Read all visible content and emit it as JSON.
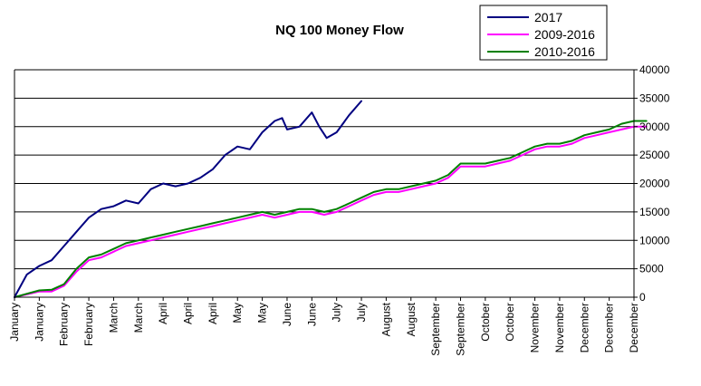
{
  "chart_data": {
    "type": "line",
    "title": "NQ 100 Money Flow",
    "xlabel": "",
    "ylabel": "",
    "ylim": [
      0,
      40000
    ],
    "yticks": [
      "0",
      "5000",
      "10000",
      "15000",
      "20000",
      "25000",
      "30000",
      "35000",
      "40000"
    ],
    "x_labels": [
      "January",
      "January",
      "February",
      "February",
      "March",
      "March",
      "April",
      "April",
      "April",
      "May",
      "May",
      "June",
      "June",
      "July",
      "July",
      "August",
      "August",
      "September",
      "September",
      "October",
      "October",
      "November",
      "November",
      "December",
      "December",
      "December"
    ],
    "grid": "horizontal",
    "legend_position": "top-right",
    "series": [
      {
        "name": "2017",
        "color": "#000080",
        "points": [
          [
            0,
            0
          ],
          [
            0.5,
            4000
          ],
          [
            1,
            5500
          ],
          [
            1.5,
            6500
          ],
          [
            2,
            9000
          ],
          [
            2.5,
            11500
          ],
          [
            3,
            14000
          ],
          [
            3.5,
            15500
          ],
          [
            4,
            16000
          ],
          [
            4.5,
            17000
          ],
          [
            5,
            16500
          ],
          [
            5.5,
            19000
          ],
          [
            6,
            20000
          ],
          [
            6.5,
            19500
          ],
          [
            7,
            20000
          ],
          [
            7.5,
            21000
          ],
          [
            8,
            22500
          ],
          [
            8.5,
            25000
          ],
          [
            9,
            26500
          ],
          [
            9.5,
            26000
          ],
          [
            10,
            29000
          ],
          [
            10.5,
            31000
          ],
          [
            10.8,
            31500
          ],
          [
            11,
            29500
          ],
          [
            11.5,
            30000
          ],
          [
            12,
            32500
          ],
          [
            12.3,
            30000
          ],
          [
            12.6,
            28000
          ],
          [
            13,
            29000
          ],
          [
            13.5,
            32000
          ],
          [
            14,
            34500
          ]
        ]
      },
      {
        "name": "2009-2016",
        "color": "#ff00ff",
        "points": [
          [
            0,
            0
          ],
          [
            0.5,
            500
          ],
          [
            1,
            1000
          ],
          [
            1.5,
            1000
          ],
          [
            2,
            2000
          ],
          [
            2.5,
            4500
          ],
          [
            3,
            6500
          ],
          [
            3.5,
            7000
          ],
          [
            4,
            8000
          ],
          [
            4.5,
            9000
          ],
          [
            5,
            9500
          ],
          [
            5.5,
            10000
          ],
          [
            6,
            10500
          ],
          [
            6.5,
            11000
          ],
          [
            7,
            11500
          ],
          [
            7.5,
            12000
          ],
          [
            8,
            12500
          ],
          [
            8.5,
            13000
          ],
          [
            9,
            13500
          ],
          [
            9.5,
            14000
          ],
          [
            10,
            14500
          ],
          [
            10.5,
            14000
          ],
          [
            11,
            14500
          ],
          [
            11.5,
            15000
          ],
          [
            12,
            15000
          ],
          [
            12.5,
            14500
          ],
          [
            13,
            15000
          ],
          [
            13.5,
            16000
          ],
          [
            14,
            17000
          ],
          [
            14.5,
            18000
          ],
          [
            15,
            18500
          ],
          [
            15.5,
            18500
          ],
          [
            16,
            19000
          ],
          [
            16.5,
            19500
          ],
          [
            17,
            20000
          ],
          [
            17.5,
            21000
          ],
          [
            18,
            23000
          ],
          [
            18.5,
            23000
          ],
          [
            19,
            23000
          ],
          [
            19.5,
            23500
          ],
          [
            20,
            24000
          ],
          [
            20.5,
            25000
          ],
          [
            21,
            26000
          ],
          [
            21.5,
            26500
          ],
          [
            22,
            26500
          ],
          [
            22.5,
            27000
          ],
          [
            23,
            28000
          ],
          [
            23.5,
            28500
          ],
          [
            24,
            29000
          ],
          [
            24.5,
            29500
          ],
          [
            25,
            30000
          ],
          [
            25.5,
            30000
          ]
        ]
      },
      {
        "name": "2010-2016",
        "color": "#008000",
        "points": [
          [
            0,
            0
          ],
          [
            0.5,
            600
          ],
          [
            1,
            1200
          ],
          [
            1.5,
            1300
          ],
          [
            2,
            2300
          ],
          [
            2.5,
            5000
          ],
          [
            3,
            7000
          ],
          [
            3.5,
            7500
          ],
          [
            4,
            8500
          ],
          [
            4.5,
            9500
          ],
          [
            5,
            10000
          ],
          [
            5.5,
            10500
          ],
          [
            6,
            11000
          ],
          [
            6.5,
            11500
          ],
          [
            7,
            12000
          ],
          [
            7.5,
            12500
          ],
          [
            8,
            13000
          ],
          [
            8.5,
            13500
          ],
          [
            9,
            14000
          ],
          [
            9.5,
            14500
          ],
          [
            10,
            15000
          ],
          [
            10.5,
            14500
          ],
          [
            11,
            15000
          ],
          [
            11.5,
            15500
          ],
          [
            12,
            15500
          ],
          [
            12.5,
            15000
          ],
          [
            13,
            15500
          ],
          [
            13.5,
            16500
          ],
          [
            14,
            17500
          ],
          [
            14.5,
            18500
          ],
          [
            15,
            19000
          ],
          [
            15.5,
            19000
          ],
          [
            16,
            19500
          ],
          [
            16.5,
            20000
          ],
          [
            17,
            20500
          ],
          [
            17.5,
            21500
          ],
          [
            18,
            23500
          ],
          [
            18.5,
            23500
          ],
          [
            19,
            23500
          ],
          [
            19.5,
            24000
          ],
          [
            20,
            24500
          ],
          [
            20.5,
            25500
          ],
          [
            21,
            26500
          ],
          [
            21.5,
            27000
          ],
          [
            22,
            27000
          ],
          [
            22.5,
            27500
          ],
          [
            23,
            28500
          ],
          [
            23.5,
            29000
          ],
          [
            24,
            29500
          ],
          [
            24.5,
            30500
          ],
          [
            25,
            31000
          ],
          [
            25.5,
            31000
          ]
        ]
      }
    ]
  }
}
